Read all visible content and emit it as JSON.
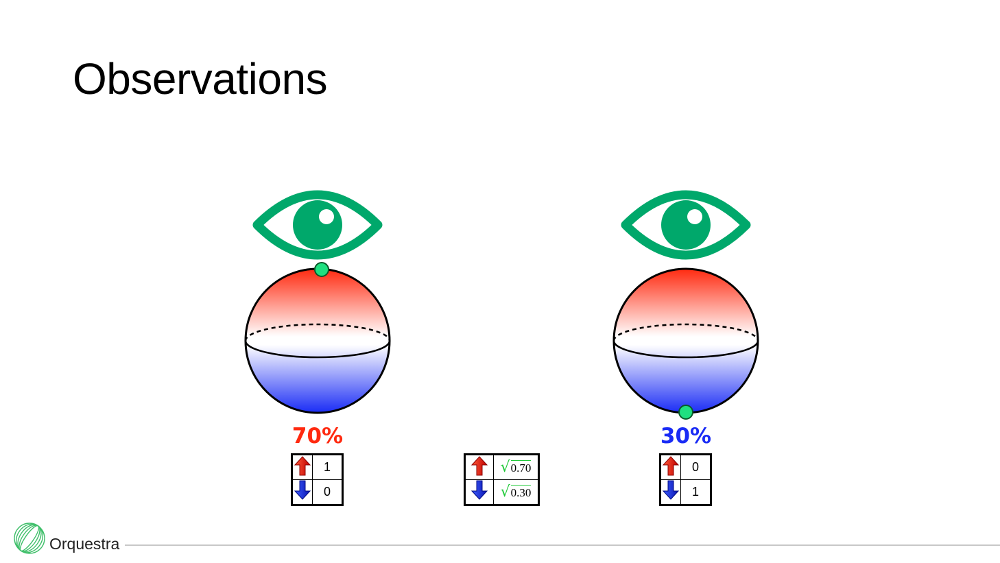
{
  "slide": {
    "title": "Observations"
  },
  "colors": {
    "eye": "#00a86b",
    "dot": "#1fe080",
    "spin_up": "#ff2a10",
    "spin_down": "#1a2cf5",
    "sqrt_green": "#22c93a",
    "footer_line": "#c8c8c8"
  },
  "left_measurement": {
    "percent": "70%",
    "table": [
      {
        "arrow": "up-arrow-icon",
        "value": "1"
      },
      {
        "arrow": "down-arrow-icon",
        "value": "0"
      }
    ]
  },
  "superposition_state": {
    "table": [
      {
        "arrow": "up-arrow-icon",
        "radicand": "0.70"
      },
      {
        "arrow": "down-arrow-icon",
        "radicand": "0.30"
      }
    ]
  },
  "right_measurement": {
    "percent": "30%",
    "table": [
      {
        "arrow": "up-arrow-icon",
        "value": "0"
      },
      {
        "arrow": "down-arrow-icon",
        "value": "1"
      }
    ]
  },
  "footer": {
    "brand": "Orquestra",
    "logo_icon": "orquestra-logo-icon"
  }
}
